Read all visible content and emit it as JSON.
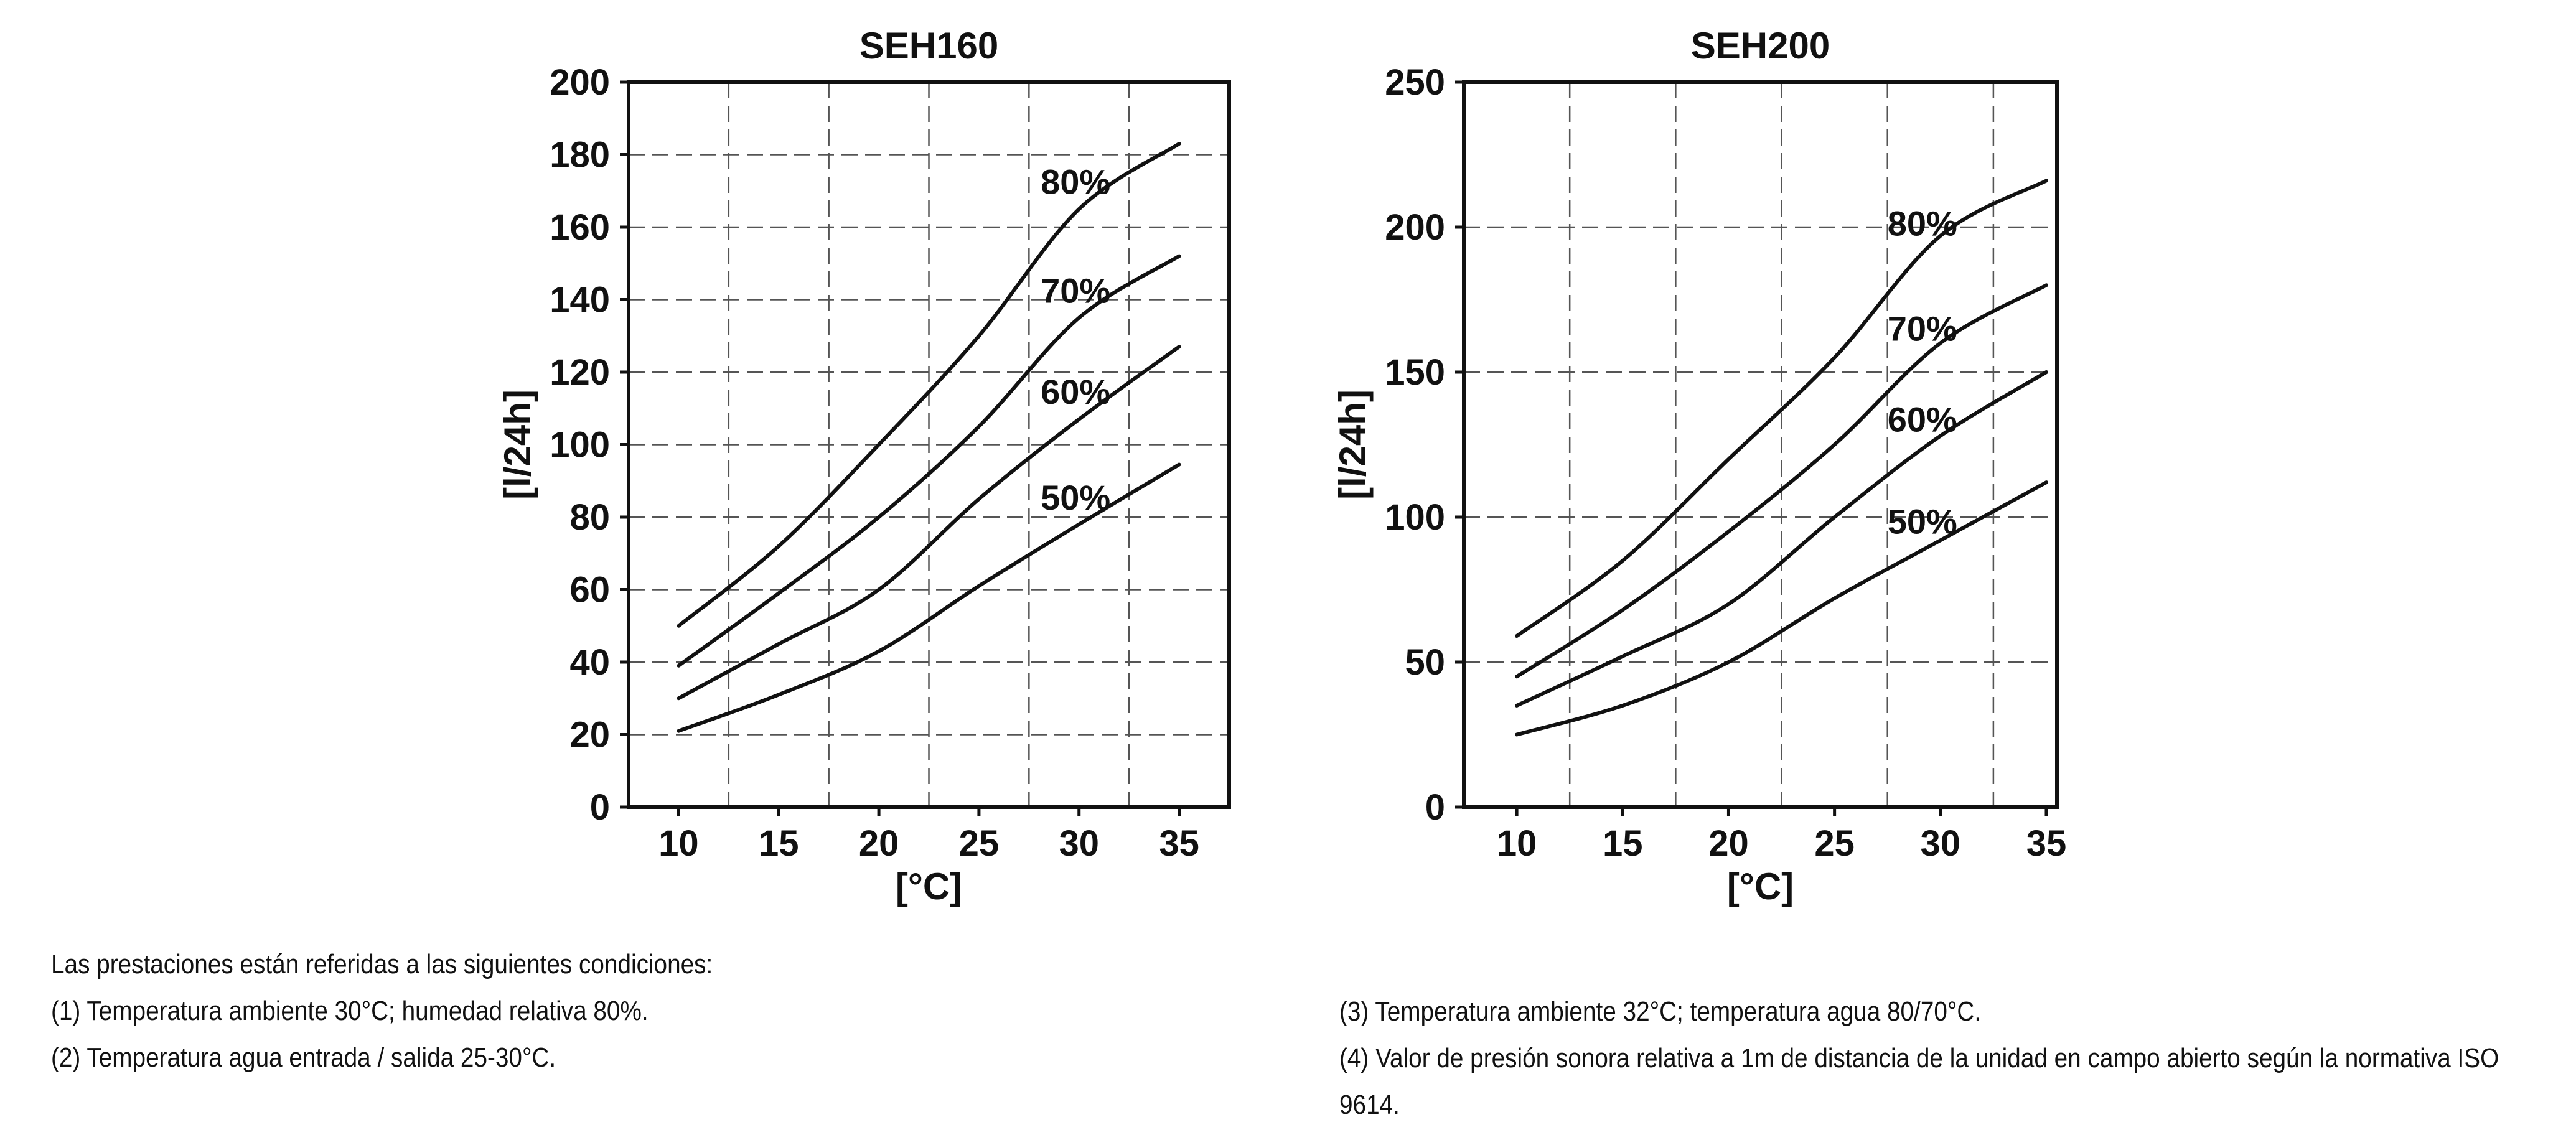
{
  "chart_data": [
    {
      "type": "line",
      "title": "SEH160",
      "xlabel": "[°C]",
      "ylabel": "[l/24h]",
      "xlim": [
        7.5,
        37.5
      ],
      "ylim": [
        0,
        200
      ],
      "x_ticks": [
        10,
        15,
        20,
        25,
        30,
        35
      ],
      "y_ticks": [
        0,
        20,
        40,
        60,
        80,
        100,
        120,
        140,
        160,
        180,
        200
      ],
      "x_grid": [
        12.5,
        17.5,
        22.5,
        27.5,
        32.5
      ],
      "y_grid": [
        20,
        40,
        60,
        80,
        100,
        120,
        140,
        160,
        180
      ],
      "grid": true,
      "legend": "none",
      "series": [
        {
          "name": "50%",
          "x": [
            10,
            15,
            20,
            25,
            30,
            35
          ],
          "y": [
            21,
            31,
            43,
            61,
            78,
            94.5
          ],
          "label_x": 30.2
        },
        {
          "name": "60%",
          "x": [
            10,
            15,
            20,
            25,
            30,
            35
          ],
          "y": [
            30,
            45,
            60,
            85,
            107,
            127
          ],
          "label_x": 30.2
        },
        {
          "name": "70%",
          "x": [
            10,
            15,
            20,
            25,
            30,
            35
          ],
          "y": [
            39,
            59,
            80,
            105,
            135,
            152
          ],
          "label_x": 30.2
        },
        {
          "name": "80%",
          "x": [
            10,
            15,
            20,
            25,
            30,
            35
          ],
          "y": [
            50,
            72,
            100,
            130,
            165,
            183
          ],
          "label_x": 30.2
        }
      ]
    },
    {
      "type": "line",
      "title": "SEH200",
      "xlabel": "[°C]",
      "ylabel": "[l/24h]",
      "xlim": [
        7.5,
        35.5
      ],
      "ylim": [
        0,
        250
      ],
      "x_ticks": [
        10,
        15,
        20,
        25,
        30,
        35
      ],
      "y_ticks": [
        0,
        50,
        100,
        150,
        200,
        250
      ],
      "x_grid": [
        12.5,
        17.5,
        22.5,
        27.5,
        32.5
      ],
      "y_grid": [
        50,
        100,
        150,
        200
      ],
      "grid": true,
      "legend": "none",
      "series": [
        {
          "name": "50%",
          "x": [
            10,
            15,
            20,
            25,
            30,
            35
          ],
          "y": [
            25,
            35,
            50,
            72,
            92,
            112
          ],
          "label_x": 29.5
        },
        {
          "name": "60%",
          "x": [
            10,
            15,
            20,
            25,
            30,
            35
          ],
          "y": [
            35,
            52,
            70,
            100,
            128,
            150
          ],
          "label_x": 29.5
        },
        {
          "name": "70%",
          "x": [
            10,
            15,
            20,
            25,
            30,
            35
          ],
          "y": [
            45,
            68,
            95,
            125,
            160,
            180
          ],
          "label_x": 29.5
        },
        {
          "name": "80%",
          "x": [
            10,
            15,
            20,
            25,
            30,
            35
          ],
          "y": [
            59,
            85,
            120,
            155,
            197,
            216
          ],
          "label_x": 29.5
        }
      ]
    }
  ],
  "notes_left": [
    "Las prestaciones están referidas  a las  siguientes condiciones:",
    "(1) Temperatura ambiente 30°C; humedad relativa 80%.",
    "(2) Temperatura agua entrada / salida 25-30°C."
  ],
  "notes_right": [
    "(3) Temperatura ambiente 32°C; temperatura agua 80/70°C.",
    "(4) Valor de presión sonora relativa a 1m de distancia de la unidad en campo abierto según la normativa ISO",
    "9614."
  ]
}
